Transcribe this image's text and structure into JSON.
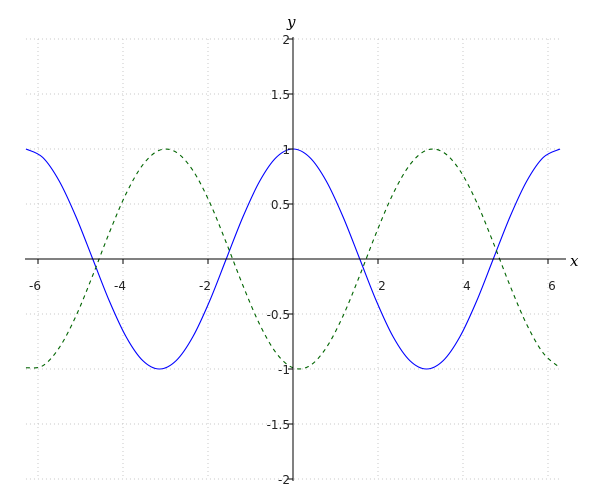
{
  "chart_data": {
    "type": "line",
    "title": "",
    "xlabel": "x",
    "ylabel": "y",
    "xlim": [
      -6.283,
      6.283
    ],
    "ylim": [
      -2,
      2
    ],
    "grid": true,
    "x_ticks": [
      -6,
      -4,
      -2,
      2,
      4,
      6
    ],
    "x_tick_labels": [
      "-6",
      "-4",
      "-2",
      "2",
      "4",
      "6"
    ],
    "y_ticks": [
      -2,
      -1.5,
      -1,
      -0.5,
      0.5,
      1,
      1.5,
      2
    ],
    "y_tick_labels": [
      "-2",
      "-1.5",
      "-1",
      "-0.5",
      "0.5",
      "1",
      "1.5",
      "2"
    ],
    "x": [
      -6.283,
      -5.89,
      -5.498,
      -5.105,
      -4.712,
      -4.32,
      -3.927,
      -3.534,
      -3.142,
      -2.749,
      -2.356,
      -1.963,
      -1.571,
      -1.178,
      -0.785,
      -0.393,
      0,
      0.393,
      0.785,
      1.178,
      1.571,
      1.963,
      2.356,
      2.749,
      3.142,
      3.534,
      3.927,
      4.32,
      4.712,
      5.105,
      5.498,
      5.89,
      6.283
    ],
    "series": [
      {
        "color": "#0000ff",
        "style": "solid",
        "values": [
          1,
          0.924,
          0.707,
          0.383,
          0,
          -0.383,
          -0.707,
          -0.924,
          -1,
          -0.924,
          -0.707,
          -0.383,
          0,
          0.383,
          0.707,
          0.924,
          1,
          0.924,
          0.707,
          0.383,
          0,
          -0.383,
          -0.707,
          -0.924,
          -1,
          -0.924,
          -0.707,
          -0.383,
          0,
          0.383,
          0.707,
          0.924,
          1
        ]
      },
      {
        "color": "#006400",
        "style": "dashed",
        "values": [
          -0.989,
          -0.971,
          -0.805,
          -0.517,
          -0.149,
          0.241,
          0.594,
          0.856,
          0.989,
          0.971,
          0.805,
          0.517,
          0.149,
          -0.241,
          -0.594,
          -0.856,
          -0.989,
          -0.971,
          -0.805,
          -0.517,
          -0.149,
          0.241,
          0.594,
          0.856,
          0.989,
          0.971,
          0.805,
          0.517,
          0.149,
          -0.241,
          -0.594,
          -0.856,
          -0.989
        ]
      }
    ]
  }
}
